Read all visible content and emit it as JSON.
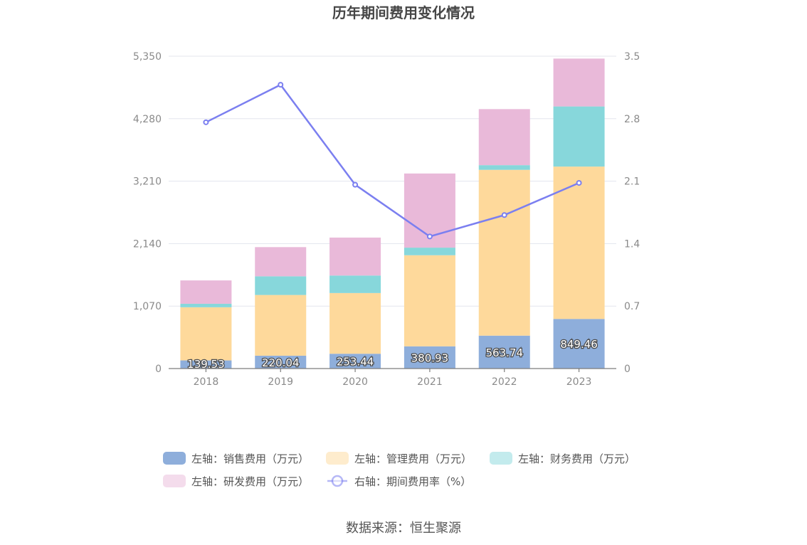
{
  "chart_data": {
    "type": "bar",
    "title": "历年期间费用变化情况",
    "categories": [
      "2018",
      "2019",
      "2020",
      "2021",
      "2022",
      "2023"
    ],
    "left_axis": {
      "ticks": [
        "0",
        "1,070",
        "2,140",
        "3,210",
        "4,280",
        "5,350"
      ],
      "ylim": [
        0,
        5350
      ]
    },
    "right_axis": {
      "ticks": [
        "0",
        "0.7",
        "1.4",
        "2.1",
        "2.8",
        "3.5"
      ],
      "ylim": [
        0,
        3.5
      ]
    },
    "grid": true,
    "legend_position": "bottom",
    "series": [
      {
        "name": "左轴：销售费用（万元）",
        "type": "bar",
        "stack": "left",
        "color": "#8eaedb",
        "values": [
          139.53,
          220.04,
          253.44,
          380.93,
          563.74,
          849.46
        ],
        "labels": [
          "139.53",
          "220.04",
          "253.44",
          "380.93",
          "563.74",
          "849.46"
        ]
      },
      {
        "name": "左轴：管理费用（万元）",
        "type": "bar",
        "stack": "left",
        "color": "#fed99b",
        "values": [
          910,
          1040,
          1040,
          1560,
          2840,
          2610
        ]
      },
      {
        "name": "左轴：财务费用（万元）",
        "type": "bar",
        "stack": "left",
        "color": "#87d7db",
        "values": [
          60,
          320,
          300,
          130,
          80,
          1030
        ]
      },
      {
        "name": "左轴：研发费用（万元）",
        "type": "bar",
        "stack": "left",
        "color": "#e9b9d9",
        "values": [
          400,
          500,
          650,
          1270,
          960,
          820
        ]
      },
      {
        "name": "右轴：期间费用率（%）",
        "type": "line",
        "axis": "right",
        "color": "#7b7ff0",
        "values": [
          2.76,
          3.18,
          2.06,
          1.48,
          1.72,
          2.08
        ]
      }
    ],
    "source": "数据来源：恒生聚源"
  }
}
